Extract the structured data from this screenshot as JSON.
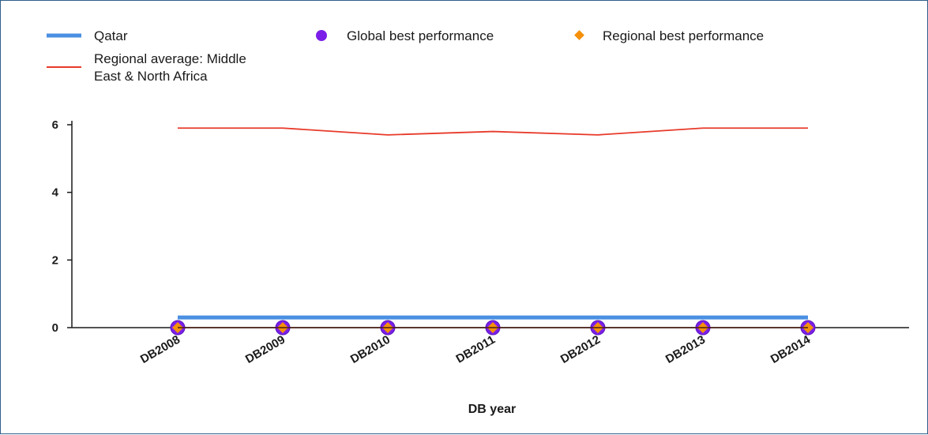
{
  "chart_data": {
    "type": "line",
    "xlabel": "DB year",
    "ylabel": "",
    "categories": [
      "DB2008",
      "DB2009",
      "DB2010",
      "DB2011",
      "DB2012",
      "DB2013",
      "DB2014"
    ],
    "ylim": [
      0,
      6
    ],
    "yticks": [
      0,
      2,
      4,
      6
    ],
    "grid": false,
    "legend_position": "top",
    "series": [
      {
        "name": "Qatar",
        "kind": "line",
        "color": "#4a8fe2",
        "values": [
          0.3,
          0.3,
          0.3,
          0.3,
          0.3,
          0.3,
          0.3
        ]
      },
      {
        "name": "Regional average: Middle East & North Africa",
        "kind": "line",
        "color": "#e83a2a",
        "values": [
          5.9,
          5.9,
          5.7,
          5.8,
          5.7,
          5.9,
          5.9
        ]
      },
      {
        "name": "Global best performance",
        "kind": "marker-circle",
        "color": "#7b1fe8",
        "values": [
          0,
          0,
          0,
          0,
          0,
          0,
          0
        ]
      },
      {
        "name": "Regional best performance",
        "kind": "marker-diamond",
        "color": "#f5900a",
        "values": [
          0,
          0,
          0,
          0,
          0,
          0,
          0
        ]
      }
    ],
    "legend": [
      {
        "label": "Qatar",
        "symbol": "line",
        "color": "#4a8fe2"
      },
      {
        "label": "Global best performance",
        "symbol": "circle",
        "color": "#7b1fe8"
      },
      {
        "label": "Regional best performance",
        "symbol": "diamond",
        "color": "#f5900a"
      },
      {
        "label_lines": [
          "Regional average: Middle",
          "East & North Africa"
        ],
        "symbol": "line",
        "color": "#e83a2a"
      }
    ]
  }
}
